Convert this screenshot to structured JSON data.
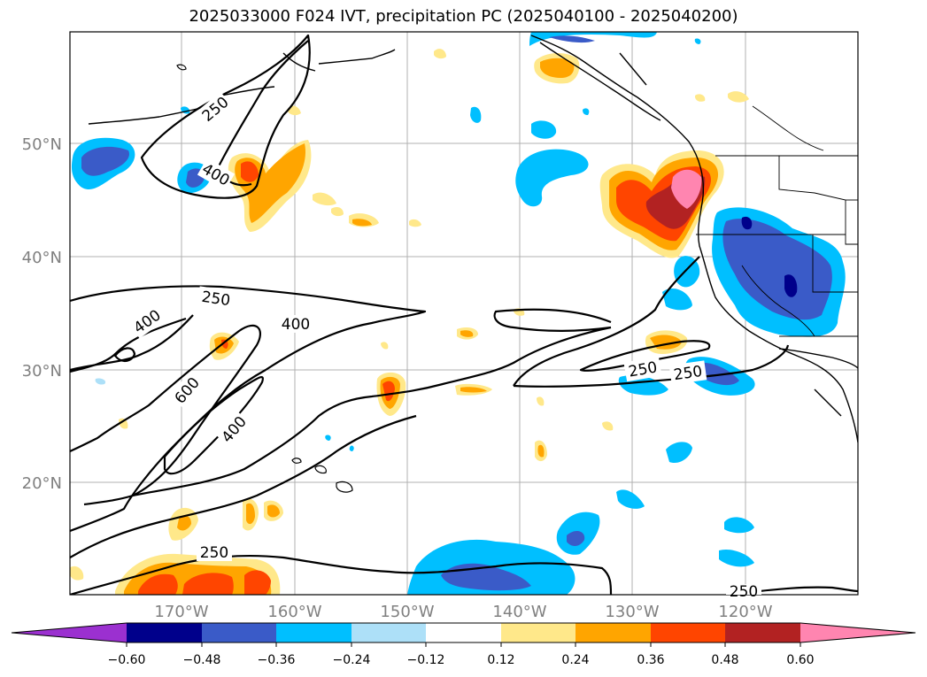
{
  "title": "2025033000 F024 IVT, precipitation PC (2025040100 - 2025040200)",
  "lat_labels": [
    "50°N",
    "40°N",
    "30°N",
    "20°N"
  ],
  "lon_labels": [
    "170°W",
    "160°W",
    "150°W",
    "140°W",
    "130°W",
    "120°W"
  ],
  "contour_labels": [
    "250",
    "400",
    "250",
    "400",
    "400",
    "600",
    "400",
    "250",
    "250",
    "250"
  ],
  "colorbar": {
    "ticks": [
      "−0.60",
      "−0.48",
      "−0.36",
      "−0.24",
      "−0.12",
      "0.12",
      "0.24",
      "0.36",
      "0.48",
      "0.60"
    ],
    "colors": [
      "#9b30d0",
      "#00008b",
      "#3a5bc8",
      "#00bfff",
      "#ade0f8",
      "#ffffff",
      "#ffe88a",
      "#ffa500",
      "#ff4500",
      "#b22222",
      "#ff85b0"
    ]
  },
  "palette": {
    "pos_012": "#ffe88a",
    "pos_024": "#ffa500",
    "pos_036": "#ff4500",
    "pos_048": "#b22222",
    "pos_060": "#ff85b0",
    "neg_012": "#ade0f8",
    "neg_024": "#00bfff",
    "neg_036": "#3a5bc8",
    "neg_048": "#00008b"
  }
}
